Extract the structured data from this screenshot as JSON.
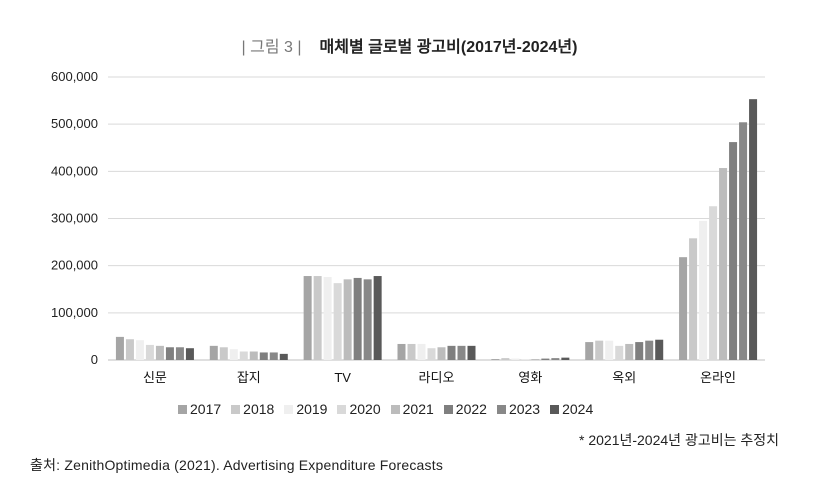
{
  "figure_label": "| 그림 3 |",
  "title": "매체별 글로벌 광고비(2017년-2024년)",
  "note": "* 2021년-2024년 광고비는 추정치",
  "source": "출처: ZenithOptimedia (2021). Advertising Expenditure Forecasts",
  "chart_data": {
    "type": "bar",
    "title": "매체별 글로벌 광고비(2017년-2024년)",
    "categories": [
      "신문",
      "잡지",
      "TV",
      "라디오",
      "영화",
      "옥외",
      "온라인"
    ],
    "ylim": [
      0,
      600000
    ],
    "yticks": [
      0,
      100000,
      200000,
      300000,
      400000,
      500000,
      600000
    ],
    "ytick_labels": [
      "0",
      "100,000",
      "200,000",
      "300,000",
      "400,000",
      "500,000",
      "600,000"
    ],
    "grid": true,
    "legend_position": "bottom",
    "series": [
      {
        "name": "2017",
        "color": "#a5a5a5",
        "values": [
          49000,
          30000,
          178000,
          34000,
          2000,
          38000,
          218000
        ]
      },
      {
        "name": "2018",
        "color": "#c9c9c9",
        "values": [
          44000,
          27000,
          178000,
          34000,
          4000,
          41000,
          258000
        ]
      },
      {
        "name": "2019",
        "color": "#efefef",
        "values": [
          42000,
          23000,
          176000,
          34000,
          3000,
          41000,
          295000
        ]
      },
      {
        "name": "2020",
        "color": "#d9d9d9",
        "values": [
          32000,
          18000,
          163000,
          25000,
          1000,
          30000,
          326000
        ]
      },
      {
        "name": "2021",
        "color": "#bcbcbc",
        "values": [
          30000,
          18000,
          171000,
          27000,
          2000,
          34000,
          407000
        ]
      },
      {
        "name": "2022",
        "color": "#7f7f7f",
        "values": [
          27000,
          16000,
          174000,
          30000,
          3000,
          38000,
          462000
        ]
      },
      {
        "name": "2023",
        "color": "#888888",
        "values": [
          27000,
          16000,
          171000,
          30000,
          4000,
          41000,
          504000
        ]
      },
      {
        "name": "2024",
        "color": "#595959",
        "values": [
          25000,
          13000,
          178000,
          30000,
          5000,
          43000,
          553000
        ]
      }
    ]
  }
}
